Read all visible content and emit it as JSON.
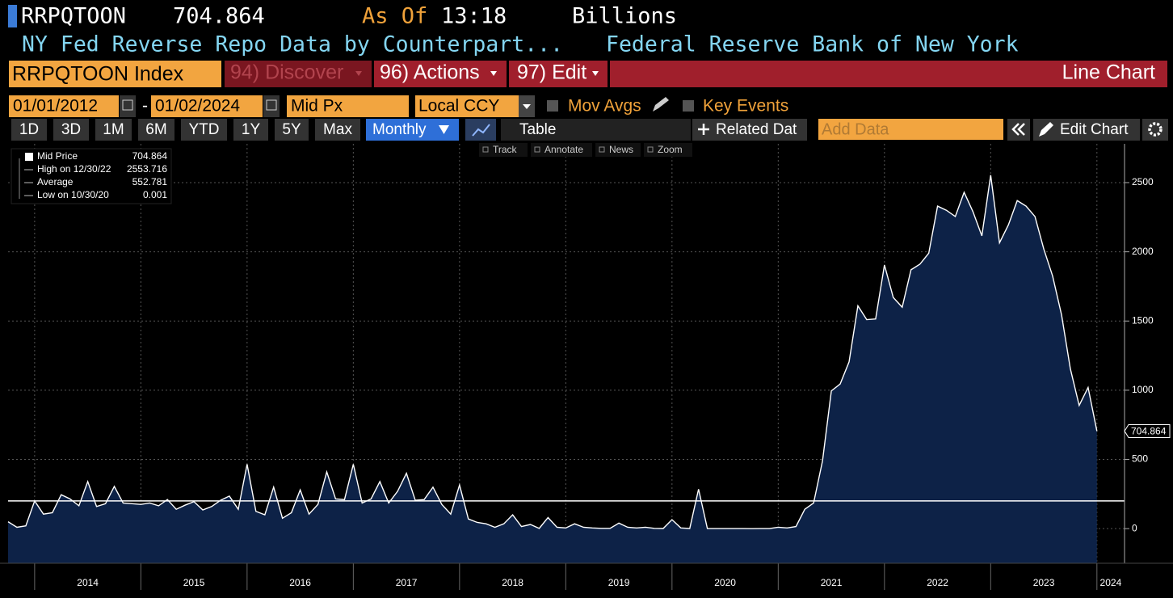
{
  "header": {
    "ticker": "RRPQTOON",
    "price": 704.864,
    "as_of": "As Of",
    "time": "13:18",
    "units": "Billions",
    "description": "NY Fed Reverse Repo Data by Counterpart...",
    "source": "Federal Reserve Bank of New York"
  },
  "toolbar": {
    "security": "RRPQTOON Index",
    "discover": "94) Discover",
    "actions": "96) Actions",
    "edit": "97) Edit",
    "view": "Line Chart",
    "start_date": "01/01/2012",
    "date_separator": "-",
    "end_date": "01/02/2024",
    "field": "Mid Px",
    "currency": "Local CCY",
    "mov_avgs": "Mov Avgs",
    "key_events": "Key Events",
    "ranges": [
      "1D",
      "3D",
      "1M",
      "6M",
      "YTD",
      "1Y",
      "5Y",
      "Max"
    ],
    "frequency": "Monthly",
    "table": "Table",
    "related_data": "Related Dat",
    "add_data": "Add Data",
    "edit_chart": "Edit Chart",
    "tools": [
      "Track",
      "Annotate",
      "News",
      "Zoom"
    ]
  },
  "legend": [
    {
      "label": "Mid Price",
      "value": 704.864
    },
    {
      "label": "High on 12/30/22",
      "value": 2553.716
    },
    {
      "label": "Average",
      "value": 552.781
    },
    {
      "label": "Low on 10/30/20",
      "value": 0.001
    }
  ],
  "chart_data": {
    "type": "area",
    "color": "#0d2247",
    "line_color": "#ffffff",
    "x": [
      2013.75,
      2013.833,
      2013.917,
      2014,
      2014.083,
      2014.167,
      2014.25,
      2014.333,
      2014.417,
      2014.5,
      2014.583,
      2014.667,
      2014.75,
      2014.833,
      2014.917,
      2015,
      2015.083,
      2015.167,
      2015.25,
      2015.333,
      2015.417,
      2015.5,
      2015.583,
      2015.667,
      2015.75,
      2015.833,
      2015.917,
      2016,
      2016.083,
      2016.167,
      2016.25,
      2016.333,
      2016.417,
      2016.5,
      2016.583,
      2016.667,
      2016.75,
      2016.833,
      2016.917,
      2017,
      2017.083,
      2017.167,
      2017.25,
      2017.333,
      2017.417,
      2017.5,
      2017.583,
      2017.667,
      2017.75,
      2017.833,
      2017.917,
      2018,
      2018.083,
      2018.167,
      2018.25,
      2018.333,
      2018.417,
      2018.5,
      2018.583,
      2018.667,
      2018.75,
      2018.833,
      2018.917,
      2019,
      2019.083,
      2019.167,
      2019.25,
      2019.333,
      2019.417,
      2019.5,
      2019.583,
      2019.667,
      2019.75,
      2019.833,
      2019.917,
      2020,
      2020.083,
      2020.167,
      2020.25,
      2020.333,
      2020.417,
      2020.5,
      2020.583,
      2020.667,
      2020.75,
      2020.833,
      2020.917,
      2021,
      2021.083,
      2021.167,
      2021.25,
      2021.333,
      2021.417,
      2021.5,
      2021.583,
      2021.667,
      2021.75,
      2021.833,
      2021.917,
      2022,
      2022.083,
      2022.167,
      2022.25,
      2022.333,
      2022.417,
      2022.5,
      2022.583,
      2022.667,
      2022.75,
      2022.833,
      2022.917,
      2023,
      2023.083,
      2023.167,
      2023.25,
      2023.333,
      2023.417,
      2023.5,
      2023.583,
      2023.667,
      2023.75,
      2023.833,
      2023.917,
      2024
    ],
    "values": [
      50,
      10,
      20,
      200,
      105,
      115,
      245,
      215,
      165,
      340,
      160,
      180,
      305,
      185,
      180,
      175,
      185,
      165,
      210,
      140,
      170,
      195,
      135,
      160,
      205,
      235,
      140,
      465,
      125,
      100,
      300,
      75,
      115,
      280,
      105,
      175,
      410,
      215,
      210,
      465,
      185,
      215,
      340,
      185,
      270,
      400,
      205,
      210,
      300,
      175,
      105,
      315,
      70,
      45,
      35,
      10,
      35,
      100,
      15,
      30,
      2,
      80,
      10,
      5,
      35,
      10,
      5,
      2,
      2,
      40,
      10,
      5,
      10,
      2,
      1,
      65,
      5,
      1,
      285,
      1,
      0.5,
      0.5,
      0.5,
      0.5,
      0.001,
      0.5,
      0.5,
      10,
      5,
      15,
      140,
      185,
      490,
      995,
      1045,
      1205,
      1610,
      1510,
      1515,
      1905,
      1670,
      1600,
      1870,
      1910,
      1990,
      2330,
      2300,
      2255,
      2430,
      2290,
      2115,
      2553.716,
      2065,
      2195,
      2370,
      2330,
      2255,
      2020,
      1825,
      1545,
      1155,
      890,
      1020,
      704.864
    ],
    "reference_line": 200,
    "xlim": [
      2013.75,
      2024.26
    ],
    "xticks": [
      2014,
      2015,
      2016,
      2017,
      2018,
      2019,
      2020,
      2021,
      2022,
      2023,
      2024
    ],
    "ylim": [
      -250,
      2780
    ],
    "yticks": [
      0,
      500,
      1000,
      1500,
      2000,
      2500
    ],
    "grid": true
  }
}
